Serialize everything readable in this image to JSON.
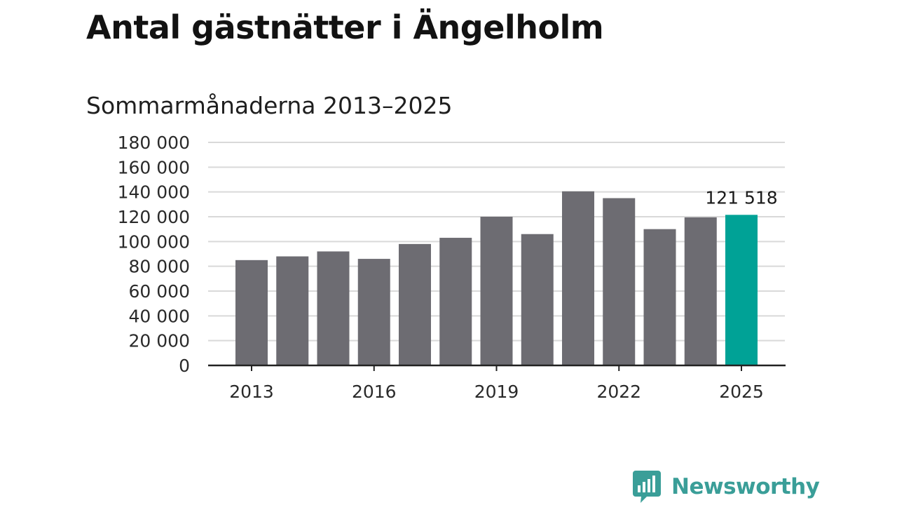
{
  "title": "Antal gästnätter i Ängelholm",
  "subtitle": "Sommarmånaderna 2013–2025",
  "logo_text": "Newsworthy",
  "colors": {
    "bar": "#6d6c72",
    "highlight": "#00a296",
    "grid": "#d9d9d9",
    "axis": "#222222",
    "logo": "#3a9e98"
  },
  "chart_data": {
    "type": "bar",
    "categories": [
      "2013",
      "2014",
      "2015",
      "2016",
      "2017",
      "2018",
      "2019",
      "2020",
      "2021",
      "2022",
      "2023",
      "2024",
      "2025"
    ],
    "values": [
      85000,
      88000,
      92000,
      86000,
      98000,
      103000,
      120000,
      106000,
      140500,
      135000,
      110000,
      119500,
      121518
    ],
    "highlight_index": 12,
    "data_labels": [
      {
        "index": 12,
        "text": "121 518"
      }
    ],
    "ylim": [
      0,
      180000
    ],
    "yticks": [
      0,
      20000,
      40000,
      60000,
      80000,
      100000,
      120000,
      140000,
      160000,
      180000
    ],
    "ytick_labels": [
      "0",
      "20 000",
      "40 000",
      "60 000",
      "80 000",
      "100 000",
      "120 000",
      "140 000",
      "160 000",
      "180 000"
    ],
    "xtick_labels": [
      "2013",
      "2016",
      "2019",
      "2022",
      "2025"
    ],
    "grid": true
  }
}
